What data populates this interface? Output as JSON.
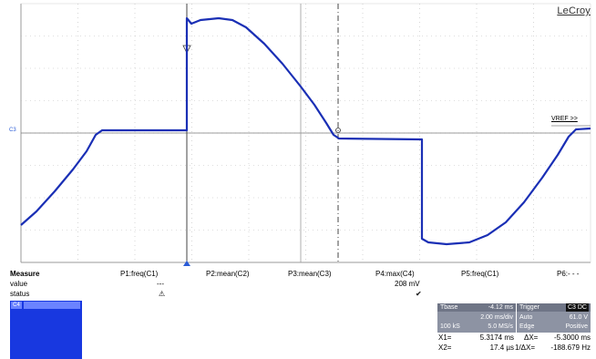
{
  "brand": "LeCroy",
  "vref_label": "VREF >>",
  "channel_marker": "C3",
  "colors": {
    "trace": "#1a2fb5",
    "grid": "#bdbdbd",
    "panel": "#8d93a3",
    "channel_box": "#1838e0"
  },
  "measure": {
    "header": [
      "Measure",
      "P1:freq(C1)",
      "P2:mean(C2)",
      "P3:mean(C3)",
      "P4:max(C4)",
      "P5:freq(C1)",
      "P6:- - -"
    ],
    "value": [
      "value",
      "---",
      "",
      "",
      "208 mV",
      "",
      ""
    ],
    "status": [
      "status",
      "⚠",
      "",
      "",
      "✔",
      "",
      ""
    ]
  },
  "channel_box": {
    "tag": "C4",
    "title": "",
    "lines": [
      "",
      "",
      "",
      "",
      ""
    ]
  },
  "timebase": {
    "label": "Tbase",
    "offset": "-4.12 ms",
    "per_div": "2.00 ms/div",
    "samples": "100 kS",
    "rate": "5.0 MS/s"
  },
  "trigger": {
    "label": "Trigger",
    "channel": "C3 DC",
    "mode": "Auto",
    "level": "61.0 V",
    "type": "Edge",
    "slope": "Positive"
  },
  "cursors": {
    "x1_label": "X1=",
    "x1": "5.3174 ms",
    "dx_label": "ΔX=",
    "dx": "-5.3000 ms",
    "x2_label": "X2=",
    "x2": "17.4 µs",
    "inv_dx_label": "1/ΔX=",
    "inv_dx": "-188.679 Hz"
  }
}
